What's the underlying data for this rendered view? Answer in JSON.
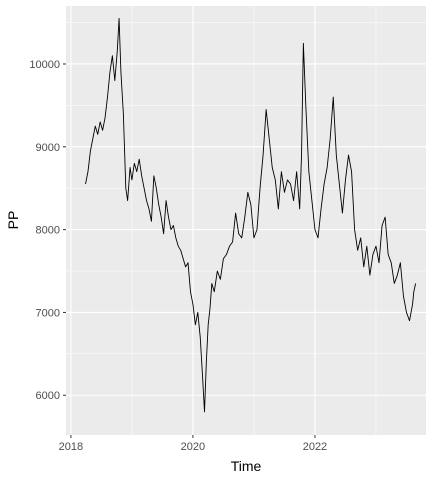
{
  "chart_data": {
    "type": "line",
    "title": "",
    "xlabel": "Time",
    "ylabel": "PP",
    "xlim": [
      2017.92,
      2023.82
    ],
    "ylim": [
      5520,
      10700
    ],
    "x_ticks": [
      2018,
      2020,
      2022
    ],
    "x_tick_labels": [
      "2018",
      "2020",
      "2022"
    ],
    "y_ticks": [
      6000,
      7000,
      8000,
      9000,
      10000
    ],
    "y_tick_labels": [
      "6000",
      "7000",
      "8000",
      "9000",
      "10000"
    ],
    "grid": true,
    "legend": "none",
    "colors": {
      "panel": "#ebebeb",
      "grid": "#ffffff",
      "line": "#000000",
      "tick_text": "#4d4d4d",
      "title_text": "#000000"
    },
    "series": [
      {
        "color": "#000000",
        "x": [
          2018.24,
          2018.28,
          2018.32,
          2018.36,
          2018.4,
          2018.44,
          2018.48,
          2018.52,
          2018.56,
          2018.6,
          2018.64,
          2018.68,
          2018.72,
          2018.76,
          2018.79,
          2018.82,
          2018.86,
          2018.9,
          2018.93,
          2018.97,
          2019.0,
          2019.04,
          2019.08,
          2019.12,
          2019.16,
          2019.2,
          2019.24,
          2019.28,
          2019.32,
          2019.36,
          2019.4,
          2019.44,
          2019.48,
          2019.52,
          2019.56,
          2019.6,
          2019.64,
          2019.68,
          2019.72,
          2019.76,
          2019.8,
          2019.84,
          2019.88,
          2019.92,
          2019.96,
          2020.0,
          2020.04,
          2020.08,
          2020.12,
          2020.16,
          2020.19,
          2020.22,
          2020.25,
          2020.28,
          2020.31,
          2020.35,
          2020.4,
          2020.45,
          2020.5,
          2020.55,
          2020.6,
          2020.65,
          2020.7,
          2020.75,
          2020.8,
          2020.85,
          2020.9,
          2020.95,
          2021.0,
          2021.05,
          2021.1,
          2021.15,
          2021.2,
          2021.25,
          2021.3,
          2021.35,
          2021.4,
          2021.45,
          2021.5,
          2021.55,
          2021.6,
          2021.65,
          2021.7,
          2021.75,
          2021.78,
          2021.81,
          2021.85,
          2021.9,
          2021.95,
          2022.0,
          2022.05,
          2022.1,
          2022.15,
          2022.2,
          2022.25,
          2022.3,
          2022.35,
          2022.4,
          2022.45,
          2022.5,
          2022.55,
          2022.6,
          2022.65,
          2022.7,
          2022.75,
          2022.8,
          2022.85,
          2022.9,
          2022.95,
          2023.0,
          2023.05,
          2023.1,
          2023.15,
          2023.2,
          2023.25,
          2023.3,
          2023.35,
          2023.4,
          2023.45,
          2023.5,
          2023.55,
          2023.6,
          2023.62,
          2023.65
        ],
        "y": [
          8550,
          8700,
          8950,
          9100,
          9250,
          9150,
          9300,
          9200,
          9350,
          9600,
          9900,
          10100,
          9800,
          10150,
          10550,
          9900,
          9400,
          8500,
          8350,
          8750,
          8600,
          8800,
          8700,
          8850,
          8650,
          8500,
          8350,
          8250,
          8100,
          8650,
          8500,
          8300,
          8150,
          7950,
          8350,
          8150,
          8000,
          8050,
          7900,
          7800,
          7750,
          7650,
          7550,
          7600,
          7250,
          7100,
          6850,
          7000,
          6700,
          6200,
          5800,
          6400,
          6850,
          7050,
          7350,
          7250,
          7500,
          7400,
          7650,
          7700,
          7800,
          7850,
          8200,
          7950,
          7900,
          8150,
          8450,
          8300,
          7900,
          8000,
          8500,
          8900,
          9450,
          9100,
          8750,
          8600,
          8250,
          8700,
          8450,
          8600,
          8550,
          8350,
          8700,
          8250,
          8900,
          10250,
          9500,
          8700,
          8350,
          8000,
          7900,
          8250,
          8550,
          8750,
          9100,
          9600,
          8900,
          8550,
          8200,
          8600,
          8900,
          8700,
          8000,
          7750,
          7900,
          7550,
          7800,
          7450,
          7700,
          7800,
          7600,
          8050,
          8150,
          7700,
          7600,
          7350,
          7450,
          7600,
          7200,
          7000,
          6900,
          7100,
          7250,
          7350
        ]
      }
    ]
  }
}
